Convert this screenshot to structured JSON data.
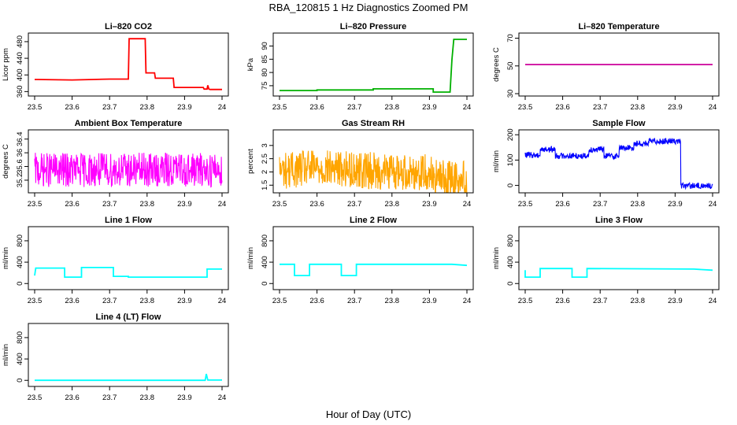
{
  "figure": {
    "title": "RBA_120815  1 Hz Diagnostics Zoomed PM",
    "xlabel": "Hour of Day (UTC)"
  },
  "chart_data": [
    {
      "type": "line",
      "title": "Li–820 CO2",
      "ylabel": "Licor ppm",
      "color": "#ff0000",
      "xlim": [
        23.5,
        24.0
      ],
      "ylim": [
        355,
        495
      ],
      "xticks": [
        23.5,
        23.6,
        23.7,
        23.8,
        23.9,
        24.0
      ],
      "yticks": [
        360,
        400,
        440,
        480
      ],
      "x": [
        23.5,
        23.51,
        23.6,
        23.7,
        23.75,
        23.752,
        23.795,
        23.797,
        23.82,
        23.822,
        23.87,
        23.872,
        23.95,
        23.952,
        23.96,
        23.962,
        23.965,
        23.968,
        24.0
      ],
      "y": [
        389,
        389,
        388,
        390,
        390,
        487,
        487,
        405,
        405,
        392,
        392,
        370,
        370,
        366,
        366,
        375,
        366,
        365,
        365
      ]
    },
    {
      "type": "line",
      "title": "Li–820 Pressure",
      "ylabel": "kPa",
      "color": "#00b000",
      "xlim": [
        23.5,
        24.0
      ],
      "ylim": [
        72,
        94
      ],
      "xticks": [
        23.5,
        23.6,
        23.7,
        23.8,
        23.9,
        24.0
      ],
      "yticks": [
        75,
        80,
        85,
        90
      ],
      "x": [
        23.5,
        23.6,
        23.6,
        23.75,
        23.75,
        23.91,
        23.91,
        23.955,
        23.96,
        23.965,
        23.97,
        24.0
      ],
      "y": [
        73.2,
        73.2,
        73.4,
        73.4,
        73.8,
        73.8,
        72.6,
        72.6,
        85,
        92.5,
        92.5,
        92.5
      ]
    },
    {
      "type": "line",
      "title": "Li–820 Temperature",
      "ylabel": "degrees C",
      "color": "#cc0099",
      "xlim": [
        23.5,
        24.0
      ],
      "ylim": [
        30,
        72
      ],
      "xticks": [
        23.5,
        23.6,
        23.7,
        23.8,
        23.9,
        24.0
      ],
      "yticks": [
        30,
        50,
        70
      ],
      "x": [
        23.5,
        24.0
      ],
      "y": [
        51,
        51
      ]
    },
    {
      "type": "line",
      "title": "Ambient Box Temperature",
      "ylabel": "degrees C",
      "color": "#ff00ff",
      "noise": {
        "amplitude": 0.5,
        "offset": 0
      },
      "xlim": [
        23.5,
        24.0
      ],
      "ylim": [
        34.9,
        36.6
      ],
      "xticks": [
        23.5,
        23.6,
        23.7,
        23.8,
        23.9,
        24.0
      ],
      "yticks": [
        35.2,
        35.6,
        36.0,
        36.4
      ],
      "x": [
        23.5,
        23.6,
        23.7,
        23.8,
        23.9,
        24.0
      ],
      "y": [
        35.5,
        35.5,
        35.5,
        35.5,
        35.5,
        35.5
      ]
    },
    {
      "type": "line",
      "title": "Gas Stream RH",
      "ylabel": "percent",
      "color": "#ffa500",
      "noise": {
        "amplitude": 0.7,
        "offset": 0
      },
      "xlim": [
        23.5,
        24.0
      ],
      "ylim": [
        1.3,
        3.5
      ],
      "xticks": [
        23.5,
        23.6,
        23.7,
        23.8,
        23.9,
        24.0
      ],
      "yticks": [
        1.5,
        2.0,
        2.5,
        3.0
      ],
      "x": [
        23.5,
        23.6,
        23.7,
        23.8,
        23.9,
        23.92,
        24.0
      ],
      "y": [
        2.05,
        2.15,
        2.1,
        2.0,
        2.0,
        1.75,
        1.75
      ]
    },
    {
      "type": "line",
      "title": "Sample Flow",
      "ylabel": "ml/min",
      "color": "#0000ff",
      "noise": {
        "amplitude": 12,
        "offset": 0
      },
      "xlim": [
        23.5,
        24.0
      ],
      "ylim": [
        -20,
        210
      ],
      "xticks": [
        23.5,
        23.6,
        23.7,
        23.8,
        23.9,
        24.0
      ],
      "yticks": [
        0,
        100,
        200
      ],
      "x": [
        23.5,
        23.54,
        23.54,
        23.58,
        23.58,
        23.67,
        23.67,
        23.71,
        23.71,
        23.75,
        23.75,
        23.79,
        23.79,
        23.83,
        23.83,
        23.915,
        23.915,
        24.0
      ],
      "y": [
        120,
        120,
        142,
        142,
        117,
        117,
        142,
        142,
        117,
        117,
        148,
        148,
        165,
        165,
        175,
        175,
        -2,
        -2
      ]
    },
    {
      "type": "line",
      "title": "Line 1 Flow",
      "ylabel": "ml/min",
      "color": "#00ffff",
      "xlim": [
        23.5,
        24.0
      ],
      "ylim": [
        -70,
        1020
      ],
      "xticks": [
        23.5,
        23.6,
        23.7,
        23.8,
        23.9,
        24.0
      ],
      "yticks": [
        0,
        400,
        800
      ],
      "x": [
        23.5,
        23.503,
        23.58,
        23.58,
        23.625,
        23.625,
        23.71,
        23.71,
        23.75,
        23.75,
        23.96,
        23.96,
        24.0
      ],
      "y": [
        150,
        290,
        290,
        120,
        120,
        300,
        300,
        135,
        135,
        120,
        120,
        270,
        270
      ]
    },
    {
      "type": "line",
      "title": "Line 2 Flow",
      "ylabel": "ml/min",
      "color": "#00ffff",
      "xlim": [
        23.5,
        24.0
      ],
      "ylim": [
        -70,
        1020
      ],
      "xticks": [
        23.5,
        23.6,
        23.7,
        23.8,
        23.9,
        24.0
      ],
      "yticks": [
        0,
        400,
        800
      ],
      "x": [
        23.5,
        23.54,
        23.54,
        23.58,
        23.58,
        23.665,
        23.665,
        23.705,
        23.705,
        23.96,
        24.0
      ],
      "y": [
        360,
        360,
        150,
        150,
        360,
        360,
        150,
        150,
        360,
        360,
        340
      ]
    },
    {
      "type": "line",
      "title": "Line 3 Flow",
      "ylabel": "ml/min",
      "color": "#00ffff",
      "xlim": [
        23.5,
        24.0
      ],
      "ylim": [
        -70,
        1020
      ],
      "xticks": [
        23.5,
        23.6,
        23.7,
        23.8,
        23.9,
        24.0
      ],
      "yticks": [
        0,
        400,
        800
      ],
      "x": [
        23.5,
        23.5,
        23.505,
        23.54,
        23.54,
        23.625,
        23.625,
        23.665,
        23.665,
        23.95,
        24.0
      ],
      "y": [
        250,
        120,
        120,
        120,
        280,
        280,
        120,
        120,
        280,
        270,
        250
      ]
    },
    {
      "type": "line",
      "title": "Line 4 (LT) Flow",
      "ylabel": "ml/min",
      "color": "#00ffff",
      "xlim": [
        23.5,
        24.0
      ],
      "ylim": [
        -70,
        1020
      ],
      "xticks": [
        23.5,
        23.6,
        23.7,
        23.8,
        23.9,
        24.0
      ],
      "yticks": [
        0,
        400,
        800
      ],
      "x": [
        23.5,
        23.955,
        23.958,
        23.962,
        24.0
      ],
      "y": [
        0,
        0,
        120,
        5,
        5
      ]
    }
  ]
}
